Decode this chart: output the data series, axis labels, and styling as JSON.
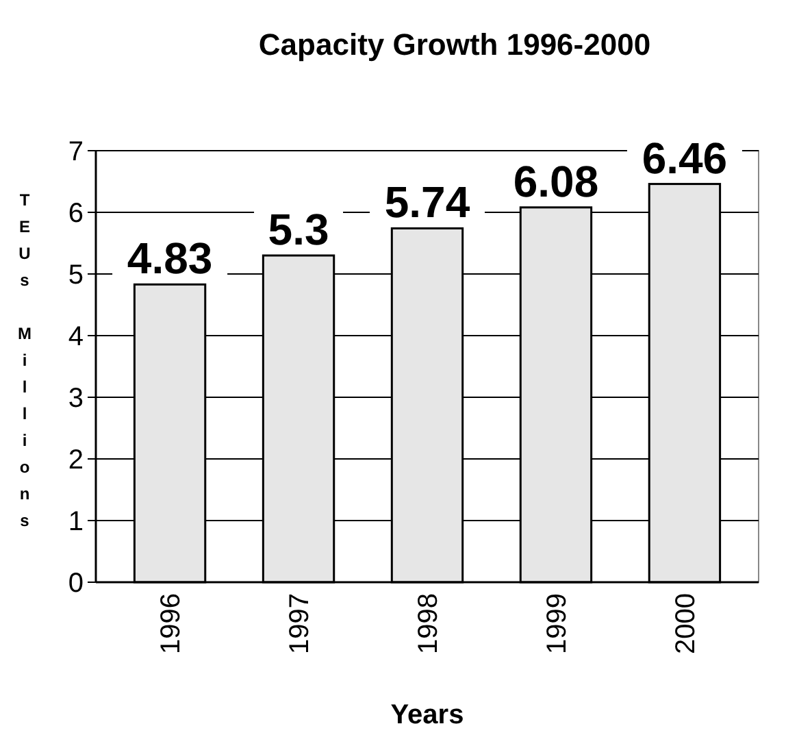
{
  "chart_data": {
    "type": "bar",
    "title": "Capacity Growth 1996-2000",
    "xlabel": "Years",
    "ylabel": "TEUs Millions",
    "categories": [
      "1996",
      "1997",
      "1998",
      "1999",
      "2000"
    ],
    "values": [
      4.83,
      5.3,
      5.74,
      6.08,
      6.46
    ],
    "color": "#e6e6e6",
    "ylim": [
      0,
      7
    ],
    "yticks": [
      0,
      1,
      2,
      3,
      4,
      5,
      6,
      7
    ],
    "grid": "y",
    "data_labels": true
  }
}
